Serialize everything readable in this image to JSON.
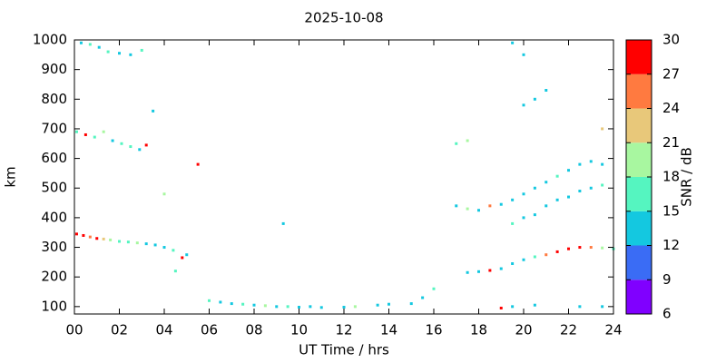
{
  "chart_data": {
    "type": "scatter",
    "title": "2025-10-08",
    "x_label": "UT Time / hrs",
    "y_label": "km",
    "xlim": [
      0,
      24
    ],
    "ylim": [
      75,
      1000
    ],
    "xticks": [
      {
        "value": 0,
        "label": "00"
      },
      {
        "value": 2,
        "label": "02"
      },
      {
        "value": 4,
        "label": "04"
      },
      {
        "value": 6,
        "label": "06"
      },
      {
        "value": 8,
        "label": "08"
      },
      {
        "value": 10,
        "label": "10"
      },
      {
        "value": 12,
        "label": "12"
      },
      {
        "value": 14,
        "label": "14"
      },
      {
        "value": 16,
        "label": "16"
      },
      {
        "value": 18,
        "label": "18"
      },
      {
        "value": 20,
        "label": "20"
      },
      {
        "value": 22,
        "label": "22"
      },
      {
        "value": 24,
        "label": "24"
      }
    ],
    "yticks": [
      100,
      200,
      300,
      400,
      500,
      600,
      700,
      800,
      900,
      1000
    ],
    "colorbar": {
      "label": "SNR / dB",
      "levels": [
        6,
        9,
        12,
        15,
        18,
        21,
        24,
        27,
        30
      ],
      "colors": [
        "#8000ff",
        "#3a6cf5",
        "#14c8e0",
        "#55f5c0",
        "#a8f7a0",
        "#e8c87a",
        "#ff7a40",
        "#ff0000"
      ],
      "ticks": [
        6,
        9,
        12,
        15,
        18,
        21,
        24,
        27,
        30
      ]
    },
    "x": [
      0.1,
      0.4,
      0.7,
      1.0,
      1.3,
      1.6,
      2.0,
      2.4,
      2.8,
      3.2,
      3.6,
      4.0,
      4.4,
      4.8,
      5.0,
      0.1,
      0.5,
      0.9,
      1.3,
      1.7,
      2.1,
      2.5,
      2.9,
      3.2,
      0.3,
      0.7,
      1.1,
      1.5,
      2.0,
      2.5,
      3.0,
      6.0,
      6.5,
      7.0,
      7.5,
      8.0,
      8.5,
      9.0,
      9.5,
      10.0,
      10.5,
      11.0,
      12.0,
      12.5,
      13.5,
      14.0,
      15.0,
      15.5,
      16.0,
      17.5,
      18,
      18.5,
      19,
      19.5,
      20,
      20.5,
      21,
      21.5,
      22,
      22.5,
      23,
      23.5,
      24,
      19,
      19.5,
      20.5,
      22.5,
      23.5,
      17,
      17.5,
      18,
      18.5,
      19,
      19.5,
      20,
      20.5,
      21,
      21.5,
      22,
      22.5,
      23,
      23.5,
      19.5,
      20,
      20.5,
      21,
      21.5,
      22,
      22.5,
      23,
      23.5,
      17,
      17.5,
      20,
      20.5,
      21,
      19.5,
      20,
      23.5,
      9.3,
      4.5,
      5.5,
      4.0,
      3.5
    ],
    "values": [
      345,
      340,
      335,
      330,
      328,
      325,
      320,
      318,
      315,
      312,
      308,
      300,
      290,
      265,
      275,
      690,
      680,
      672,
      690,
      660,
      650,
      640,
      630,
      645,
      990,
      985,
      975,
      960,
      955,
      950,
      965,
      120,
      115,
      110,
      108,
      105,
      103,
      100,
      100,
      98,
      100,
      97,
      98,
      100,
      105,
      108,
      110,
      130,
      160,
      215,
      218,
      222,
      228,
      245,
      258,
      268,
      275,
      285,
      295,
      300,
      300,
      298,
      295,
      95,
      100,
      105,
      100,
      100,
      440,
      430,
      425,
      440,
      445,
      380,
      400,
      410,
      440,
      460,
      470,
      490,
      500,
      510,
      460,
      480,
      500,
      520,
      540,
      560,
      580,
      590,
      580,
      650,
      660,
      780,
      800,
      830,
      990,
      950,
      700,
      380,
      220,
      580,
      480,
      760
    ],
    "snr": [
      28,
      28,
      25,
      27,
      22,
      19,
      17,
      16,
      19,
      14,
      13,
      12,
      16,
      27,
      12,
      16,
      28,
      17,
      18,
      13,
      16,
      16,
      13,
      28,
      13,
      16,
      14,
      16,
      12,
      14,
      17,
      15,
      12,
      12,
      16,
      12,
      18,
      12,
      15,
      12,
      12,
      12,
      12,
      18,
      12,
      12,
      12,
      12,
      15,
      14,
      12,
      27,
      12,
      13,
      14,
      16,
      25,
      28,
      28,
      28,
      25,
      18,
      16,
      27,
      12,
      12,
      12,
      12,
      12,
      18,
      12,
      24,
      12,
      16,
      12,
      13,
      12,
      14,
      12,
      12,
      12,
      15,
      12,
      12,
      13,
      12,
      16,
      12,
      12,
      12,
      12,
      16,
      18,
      12,
      12,
      12,
      12,
      12,
      21,
      12,
      16,
      27,
      18,
      12
    ]
  }
}
